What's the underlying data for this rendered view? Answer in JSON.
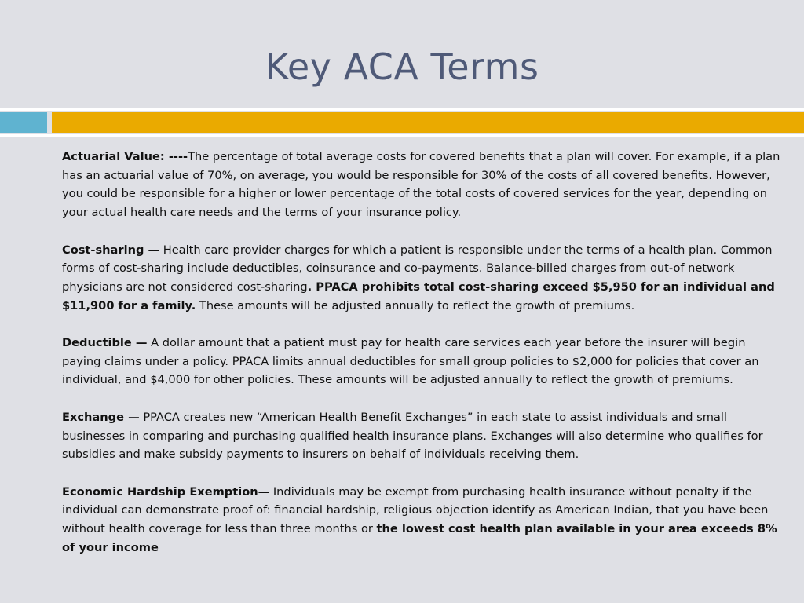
{
  "title": "Key ACA Terms",
  "colors": {
    "accent_blue": "#5fb3d0",
    "accent_orange": "#eaaa00",
    "title": "#4f5a78",
    "background": "#dfe0e5"
  },
  "terms": [
    {
      "term": "Actuarial Value: ----",
      "text": "The percentage of total average costs for covered benefits that a plan will cover. For example, if a plan has an actuarial value of 70%, on average, you would be responsible for 30% of the costs of all covered benefits. However, you could be responsible for a higher or lower percentage of the total costs of covered services for the year, depending on your actual health care needs and the terms of your insurance policy."
    },
    {
      "term": "Cost-sharing —",
      "text": " Health care provider charges for which a patient is responsible under the terms of a health plan. Common forms of cost-sharing include deductibles, coinsurance and co-payments. Balance-billed charges from out-of network physicians are not considered cost-sharing",
      "bold": ". PPACA prohibits total cost-sharing exceed $5,950 for an individual and $11,900 for a family.",
      "tail": " These amounts will be adjusted annually to reflect the growth of premiums."
    },
    {
      "term": "Deductible —",
      "text": " A dollar amount that a patient must pay for health care services each year before the insurer will begin paying claims under a policy. PPACA limits annual deductibles for small group policies to $2,000 for policies that cover an individual, and $4,000 for other policies. These amounts will be adjusted annually to reflect the growth of premiums."
    },
    {
      "term": "Exchange —",
      "text": " PPACA creates new “American Health Benefit Exchanges” in each state to assist individuals and small businesses in comparing and purchasing qualified health insurance plans. Exchanges will also determine who qualifies for subsidies and make subsidy payments to insurers on behalf of individuals receiving them."
    },
    {
      "term": "Economic Hardship Exemption—",
      "text": " Individuals may be exempt from purchasing health insurance without penalty if the individual can demonstrate proof of: financial hardship, religious objection identify as American Indian, that you have been without health coverage for less than three months or ",
      "bold": "the lowest cost health plan available in your area exceeds 8% of your income"
    }
  ]
}
